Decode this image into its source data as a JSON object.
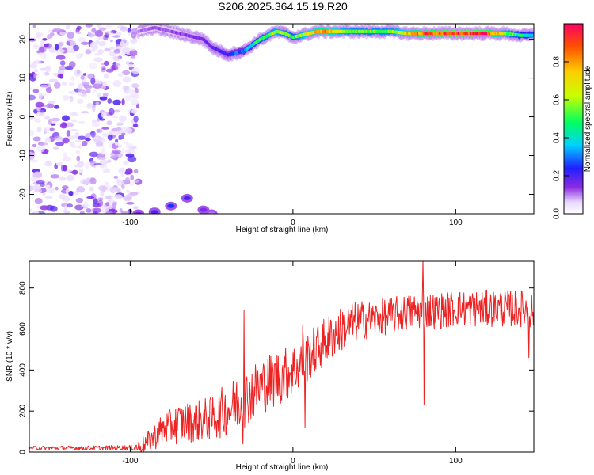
{
  "chart_data": [
    {
      "type": "heatmap",
      "title": "S206.2025.364.15.19.R20",
      "xlabel": "Height of straight line (km)",
      "ylabel": "Frequency (Hz)",
      "xlim": [
        -162,
        148
      ],
      "ylim": [
        -25,
        24
      ],
      "xticks": [
        -100,
        0,
        100
      ],
      "xtick_labels": [
        "-100",
        "0",
        "100"
      ],
      "yticks": [
        -20,
        -10,
        0,
        10,
        20
      ],
      "ytick_labels": [
        "-20",
        "-10",
        "0",
        "10",
        "20"
      ],
      "colorbar": {
        "label": "Normalized spectral amplitude",
        "range": [
          0,
          1
        ],
        "ticks": [
          0,
          0.2,
          0.4,
          0.6,
          0.8
        ],
        "tick_labels": [
          "0.0",
          "0.2",
          "0.4",
          "0.6",
          "0.8"
        ]
      },
      "ridge": {
        "description": "dominant frequency track",
        "x": [
          -95,
          -85,
          -75,
          -65,
          -55,
          -50,
          -45,
          -40,
          -35,
          -30,
          -25,
          -20,
          -15,
          -10,
          -5,
          0,
          5,
          10,
          15,
          20,
          30,
          40,
          50,
          60,
          70,
          80,
          90,
          100,
          110,
          120,
          130,
          140,
          148
        ],
        "y": [
          22,
          23,
          22,
          21,
          20,
          18,
          17,
          16,
          16.5,
          17,
          18.5,
          20,
          21,
          22,
          21.5,
          20.5,
          21,
          21.5,
          22,
          22,
          22,
          22,
          22,
          22,
          21.5,
          21.5,
          21.5,
          21.5,
          21.5,
          21.5,
          21.5,
          21,
          21
        ],
        "amplitude": [
          0.1,
          0.12,
          0.12,
          0.14,
          0.16,
          0.18,
          0.2,
          0.22,
          0.28,
          0.3,
          0.4,
          0.5,
          0.55,
          0.6,
          0.55,
          0.5,
          0.6,
          0.7,
          0.75,
          0.8,
          0.6,
          0.55,
          0.55,
          0.55,
          0.7,
          0.85,
          0.9,
          0.95,
          0.95,
          0.9,
          0.6,
          0.45,
          0.4
        ]
      },
      "lower_band": {
        "x": [
          -95,
          -85,
          -75,
          -65,
          -55,
          -50
        ],
        "y": [
          -25,
          -24.5,
          -23,
          -21,
          -24,
          -25
        ],
        "amplitude": [
          0.15,
          0.2,
          0.25,
          0.2,
          0.15,
          0.1
        ]
      },
      "noise_region_x": [
        -162,
        -95
      ]
    },
    {
      "type": "line",
      "title": "",
      "xlabel": "Height of straight line (km)",
      "ylabel": "SNR (10 * v/v)",
      "xlim": [
        -162,
        148
      ],
      "ylim": [
        0,
        930
      ],
      "xticks": [
        -100,
        0,
        100
      ],
      "xtick_labels": [
        "-100",
        "0",
        "100"
      ],
      "yticks": [
        0,
        200,
        400,
        600,
        800
      ],
      "ytick_labels": [
        "0",
        "200",
        "400",
        "600",
        "800"
      ],
      "series": [
        {
          "name": "SNR",
          "color": "#ee2222",
          "trend_x": [
            -162,
            -140,
            -120,
            -100,
            -95,
            -90,
            -80,
            -70,
            -60,
            -50,
            -40,
            -30,
            -20,
            -10,
            0,
            10,
            20,
            30,
            40,
            50,
            60,
            70,
            80,
            90,
            100,
            110,
            120,
            130,
            140,
            148
          ],
          "trend_y": [
            20,
            20,
            20,
            22,
            25,
            45,
            110,
            140,
            150,
            165,
            210,
            260,
            320,
            360,
            400,
            470,
            540,
            600,
            640,
            650,
            665,
            680,
            690,
            690,
            700,
            700,
            700,
            700,
            700,
            690
          ],
          "spread_x": [
            -162,
            -100,
            -90,
            -80,
            -70,
            -60,
            -50,
            -40,
            -30,
            -20,
            -10,
            0,
            10,
            20,
            30,
            40,
            50,
            60,
            70,
            80,
            90,
            100,
            110,
            120,
            130,
            140,
            148
          ],
          "spread_y": [
            10,
            12,
            50,
            80,
            100,
            100,
            110,
            130,
            140,
            140,
            140,
            130,
            120,
            120,
            110,
            100,
            90,
            90,
            90,
            90,
            90,
            90,
            90,
            90,
            90,
            90,
            90
          ],
          "spikes": [
            {
              "x": -30,
              "y": 690
            },
            {
              "x": -30.6,
              "y": 40
            },
            {
              "x": 6,
              "y": 620
            },
            {
              "x": 7.5,
              "y": 120
            },
            {
              "x": 80,
              "y": 940
            },
            {
              "x": 80.6,
              "y": 230
            },
            {
              "x": 145,
              "y": 460
            }
          ]
        }
      ]
    }
  ]
}
